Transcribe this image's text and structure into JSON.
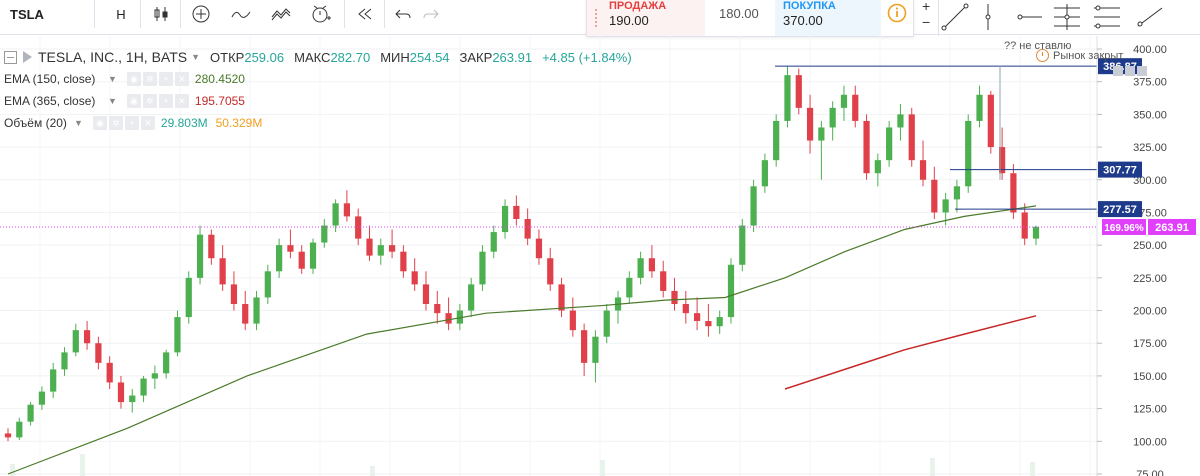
{
  "toolbar": {
    "symbol": "TSLA",
    "interval": "H",
    "icons": [
      "candles-icon",
      "add-indicator-icon",
      "compare-icon",
      "templates-icon",
      "alert-icon",
      "replay-icon",
      "undo-icon",
      "redo-icon"
    ]
  },
  "trade": {
    "sell_label": "ПРОДАЖА",
    "sell_value": "190.00",
    "spread_value": "180.00",
    "buy_label": "ПОКУПКА",
    "buy_value": "370.00",
    "sell_color": "#e53e3e",
    "buy_color": "#2196f3"
  },
  "legend": {
    "title": "TESLA, INC., 1H, BATS",
    "open_label": "ОТКР",
    "open_value": "259.06",
    "high_label": "МАКС",
    "high_value": "282.70",
    "low_label": "МИН",
    "low_value": "254.54",
    "close_label": "ЗАКР",
    "close_value": "263.91",
    "change": "+4.85 (+1.84%)",
    "ema150_label": "EMA (150, close)",
    "ema150_value": "280.4520",
    "ema365_label": "EMA (365, close)",
    "ema365_value": "195.7055",
    "volume_label": "Объём (20)",
    "volume_value1": "29.803M",
    "volume_value2": "50.329M",
    "value_color": "#26a69a"
  },
  "status": {
    "note": "?? не ставлю",
    "market": "Рынок закрыт"
  },
  "chart_data": {
    "type": "candlestick",
    "ylim": [
      75,
      402
    ],
    "y_ticks": [
      75,
      100,
      125,
      150,
      175,
      200,
      225,
      250,
      275,
      300,
      325,
      350,
      375,
      400
    ],
    "y_tick_labels": [
      "75.00",
      "100.00",
      "125.00",
      "150.00",
      "175.00",
      "200.00",
      "225.00",
      "250.00",
      "275.00",
      "300.00",
      "325.00",
      "350.00",
      "375.00",
      "400.00"
    ],
    "up_color": "#4caf50",
    "down_color": "#e0404a",
    "ohlc_approx": [
      [
        106,
        110,
        100,
        103
      ],
      [
        103,
        118,
        101,
        115
      ],
      [
        115,
        130,
        112,
        128
      ],
      [
        128,
        142,
        124,
        138
      ],
      [
        138,
        160,
        133,
        155
      ],
      [
        155,
        172,
        150,
        168
      ],
      [
        168,
        190,
        165,
        185
      ],
      [
        185,
        192,
        170,
        175
      ],
      [
        175,
        180,
        155,
        160
      ],
      [
        160,
        165,
        140,
        145
      ],
      [
        145,
        150,
        125,
        130
      ],
      [
        130,
        140,
        122,
        135
      ],
      [
        135,
        150,
        130,
        148
      ],
      [
        148,
        158,
        140,
        152
      ],
      [
        152,
        170,
        148,
        168
      ],
      [
        168,
        200,
        165,
        195
      ],
      [
        195,
        230,
        190,
        225
      ],
      [
        225,
        265,
        220,
        258
      ],
      [
        258,
        262,
        235,
        240
      ],
      [
        240,
        250,
        215,
        220
      ],
      [
        220,
        230,
        200,
        205
      ],
      [
        205,
        215,
        185,
        190
      ],
      [
        190,
        215,
        185,
        210
      ],
      [
        210,
        235,
        205,
        230
      ],
      [
        230,
        255,
        225,
        250
      ],
      [
        250,
        262,
        240,
        245
      ],
      [
        245,
        250,
        228,
        232
      ],
      [
        232,
        255,
        228,
        252
      ],
      [
        252,
        270,
        248,
        265
      ],
      [
        265,
        285,
        260,
        282
      ],
      [
        282,
        292,
        268,
        272
      ],
      [
        272,
        278,
        250,
        255
      ],
      [
        255,
        265,
        238,
        242
      ],
      [
        242,
        255,
        235,
        250
      ],
      [
        250,
        262,
        240,
        245
      ],
      [
        245,
        250,
        225,
        230
      ],
      [
        230,
        240,
        215,
        220
      ],
      [
        220,
        230,
        200,
        205
      ],
      [
        205,
        215,
        190,
        198
      ],
      [
        198,
        210,
        185,
        190
      ],
      [
        190,
        205,
        185,
        200
      ],
      [
        200,
        225,
        195,
        220
      ],
      [
        220,
        250,
        215,
        245
      ],
      [
        245,
        265,
        240,
        260
      ],
      [
        260,
        285,
        255,
        280
      ],
      [
        280,
        288,
        265,
        270
      ],
      [
        270,
        278,
        250,
        255
      ],
      [
        255,
        262,
        235,
        240
      ],
      [
        240,
        248,
        215,
        220
      ],
      [
        220,
        225,
        195,
        200
      ],
      [
        200,
        210,
        180,
        185
      ],
      [
        185,
        190,
        150,
        160
      ],
      [
        160,
        185,
        145,
        180
      ],
      [
        180,
        205,
        175,
        200
      ],
      [
        200,
        215,
        190,
        210
      ],
      [
        210,
        230,
        205,
        225
      ],
      [
        225,
        245,
        220,
        240
      ],
      [
        240,
        250,
        225,
        230
      ],
      [
        230,
        238,
        210,
        215
      ],
      [
        215,
        225,
        200,
        205
      ],
      [
        205,
        215,
        190,
        198
      ],
      [
        198,
        210,
        185,
        192
      ],
      [
        192,
        205,
        180,
        188
      ],
      [
        188,
        200,
        182,
        195
      ],
      [
        195,
        240,
        190,
        235
      ],
      [
        235,
        270,
        230,
        265
      ],
      [
        265,
        300,
        260,
        295
      ],
      [
        295,
        320,
        290,
        315
      ],
      [
        315,
        350,
        310,
        345
      ],
      [
        345,
        387,
        340,
        380
      ],
      [
        380,
        385,
        350,
        355
      ],
      [
        355,
        365,
        320,
        330
      ],
      [
        330,
        345,
        300,
        340
      ],
      [
        340,
        360,
        330,
        355
      ],
      [
        355,
        372,
        345,
        365
      ],
      [
        365,
        372,
        340,
        345
      ],
      [
        345,
        350,
        300,
        305
      ],
      [
        305,
        320,
        295,
        315
      ],
      [
        315,
        345,
        310,
        340
      ],
      [
        340,
        358,
        330,
        350
      ],
      [
        350,
        355,
        310,
        315
      ],
      [
        315,
        330,
        295,
        300
      ],
      [
        300,
        310,
        270,
        275
      ],
      [
        275,
        290,
        265,
        285
      ],
      [
        285,
        300,
        275,
        295
      ],
      [
        295,
        350,
        290,
        345
      ],
      [
        345,
        372,
        340,
        365
      ],
      [
        365,
        368,
        320,
        325
      ],
      [
        325,
        340,
        300,
        305
      ],
      [
        305,
        312,
        270,
        275
      ],
      [
        275,
        282,
        250,
        255
      ],
      [
        255,
        265,
        250,
        264
      ]
    ],
    "ema150_approx": [
      [
        0,
        75
      ],
      [
        0.1,
        110
      ],
      [
        0.2,
        150
      ],
      [
        0.3,
        182
      ],
      [
        0.4,
        198
      ],
      [
        0.5,
        204
      ],
      [
        0.55,
        208
      ],
      [
        0.6,
        210
      ],
      [
        0.65,
        225
      ],
      [
        0.7,
        245
      ],
      [
        0.75,
        262
      ],
      [
        0.8,
        272
      ],
      [
        0.86,
        280
      ]
    ],
    "ema365_approx": [
      [
        0.65,
        140
      ],
      [
        0.7,
        155
      ],
      [
        0.75,
        170
      ],
      [
        0.8,
        182
      ],
      [
        0.86,
        196
      ]
    ],
    "horizontal_lines": [
      {
        "label": "386.87",
        "value": 386.87,
        "color": "#1e3a8a"
      },
      {
        "label": "307.77",
        "value": 307.77,
        "color": "#1e3a8a"
      },
      {
        "label": "277.57",
        "value": 277.57,
        "color": "#1e3a8a"
      }
    ],
    "price_line": {
      "label": "263.91",
      "pct_label": "169.96%",
      "value": 263.91,
      "color": "#e040fb"
    },
    "ema150_color": "#4a7a2a",
    "ema365_color": "#c62828"
  }
}
